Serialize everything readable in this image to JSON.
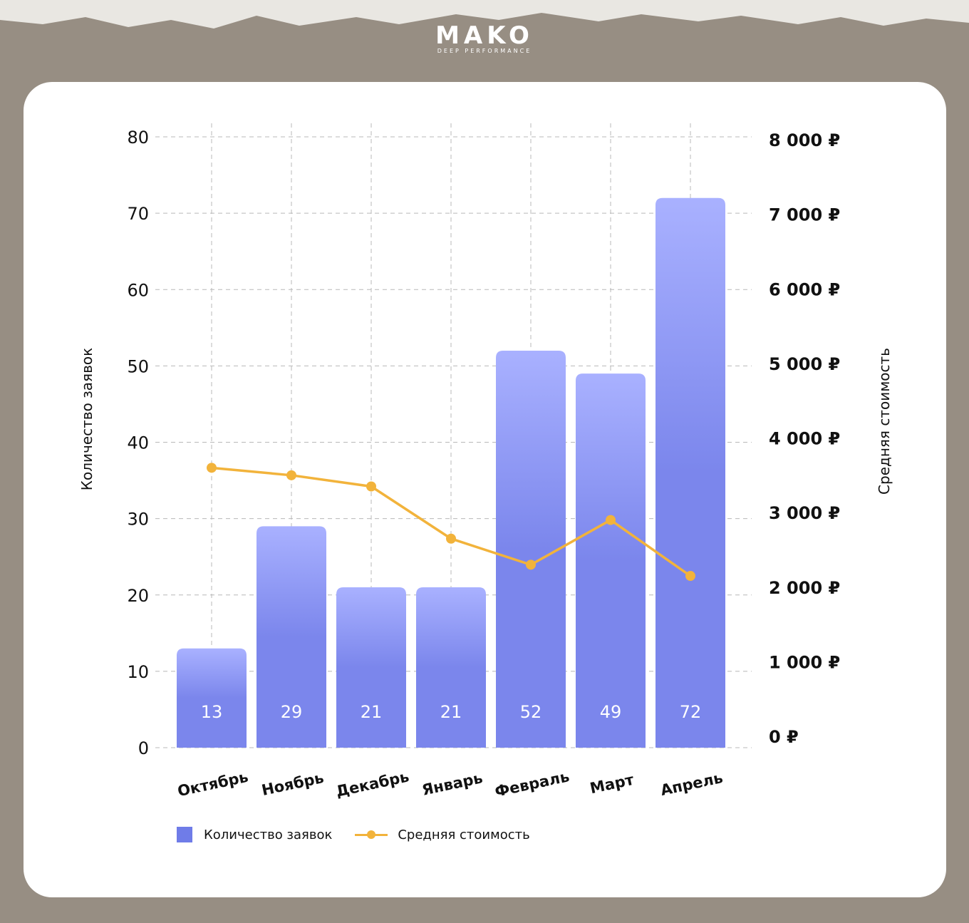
{
  "brand": {
    "name": "MAKO",
    "tagline": "DEEP PERFORMANCE"
  },
  "colors": {
    "background": "#978e83",
    "card": "#ffffff",
    "bar_top": "#a9b1ff",
    "bar_bottom": "#7b86ec",
    "line": "#f2b33b"
  },
  "chart_data": {
    "type": "bar",
    "title": "",
    "categories": [
      "Октябрь",
      "Ноябрь",
      "Декабрь",
      "Январь",
      "Февраль",
      "Март",
      "Апрель"
    ],
    "series": [
      {
        "name": "Количество заявок",
        "type": "bar",
        "axis": "left",
        "values": [
          13,
          29,
          21,
          21,
          52,
          49,
          72
        ],
        "data_labels": [
          "13",
          "29",
          "21",
          "21",
          "52",
          "49",
          "72"
        ]
      },
      {
        "name": "Средняя стоимость",
        "type": "line",
        "axis": "right",
        "values": [
          3600,
          3500,
          3350,
          2650,
          2300,
          2900,
          2150
        ]
      }
    ],
    "ylabel": "Количество заявок",
    "y2label": "Средняя стоимость",
    "ylim": [
      0,
      80
    ],
    "y2lim": [
      0,
      8000
    ],
    "yticks": [
      0,
      10,
      20,
      30,
      40,
      50,
      60,
      70,
      80
    ],
    "y2ticks": [
      "0 ₽",
      "1 000 ₽",
      "2 000 ₽",
      "3 000 ₽",
      "4 000 ₽",
      "5 000 ₽",
      "6 000 ₽",
      "7 000 ₽",
      "8 000 ₽"
    ],
    "grid": true,
    "legend": "bottom-left"
  }
}
